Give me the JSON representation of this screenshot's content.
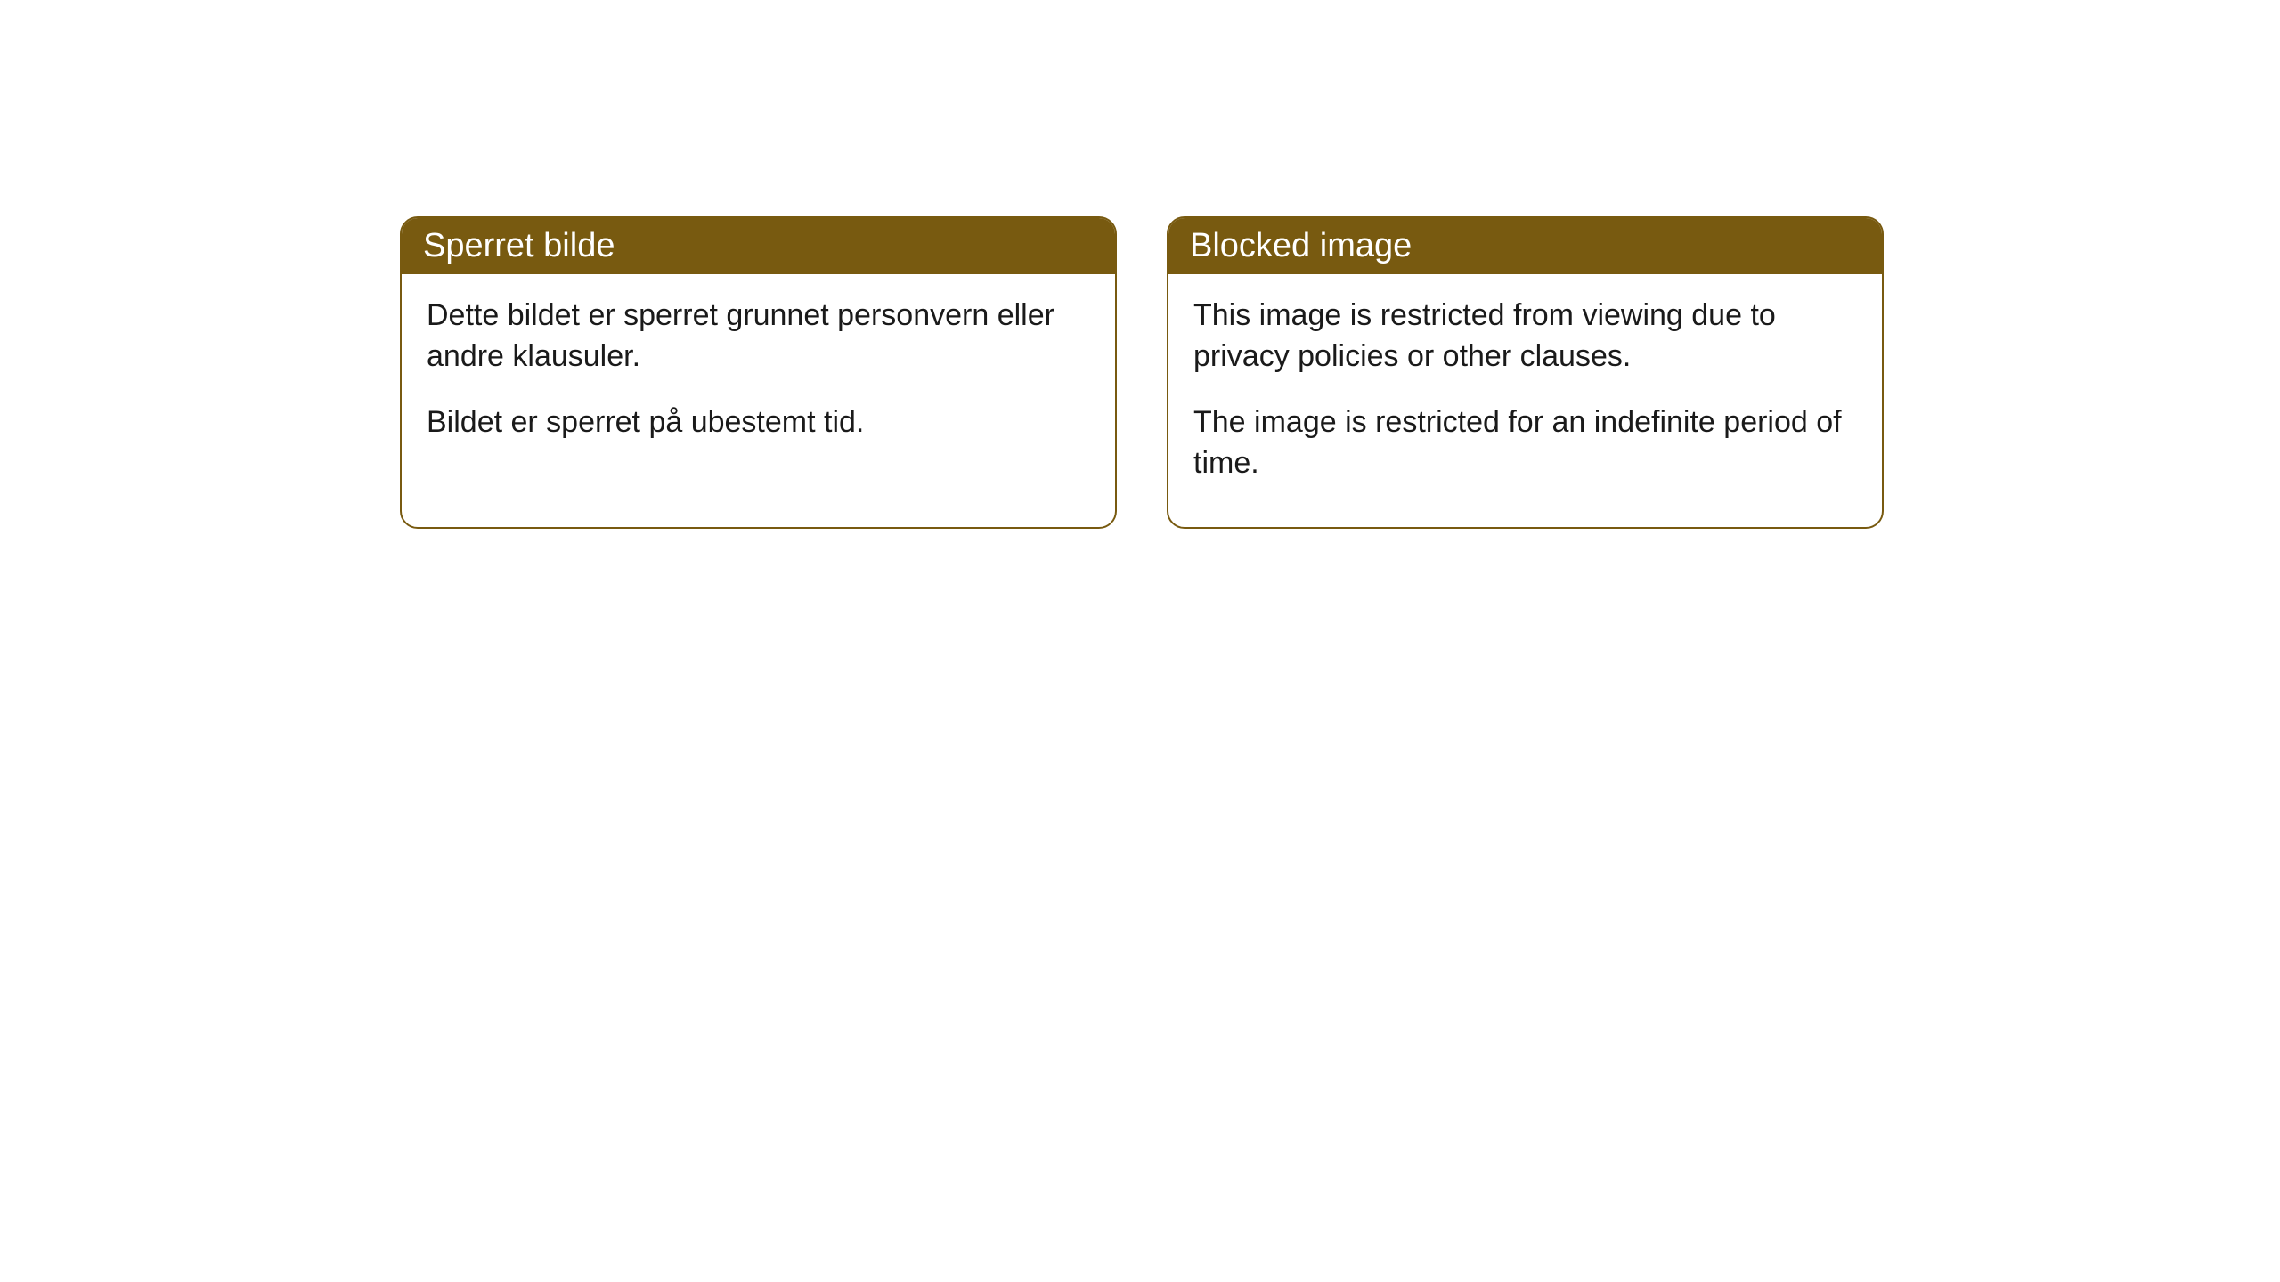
{
  "cards": [
    {
      "title": "Sperret bilde",
      "paragraph1": "Dette bildet er sperret grunnet personvern eller andre klausuler.",
      "paragraph2": "Bildet er sperret på ubestemt tid."
    },
    {
      "title": "Blocked image",
      "paragraph1": "This image is restricted from viewing due to privacy policies or other clauses.",
      "paragraph2": "The image is restricted for an indefinite period of time."
    }
  ],
  "styling": {
    "header_background": "#785a10",
    "header_text_color": "#ffffff",
    "border_color": "#785a10",
    "body_text_color": "#1a1a1a",
    "card_background": "#ffffff",
    "page_background": "#ffffff",
    "border_radius": 20,
    "title_fontsize": 38,
    "body_fontsize": 34
  }
}
